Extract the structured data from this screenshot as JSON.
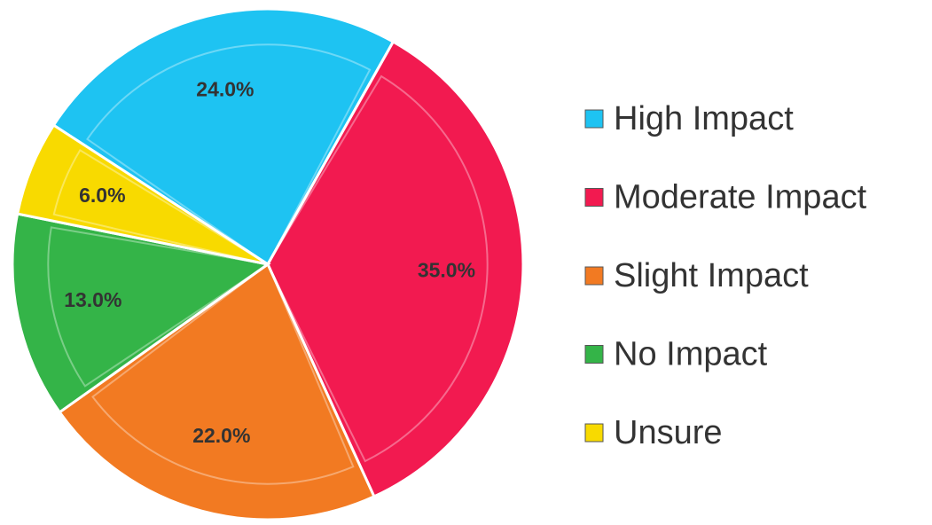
{
  "chart_data": {
    "type": "pie",
    "categories": [
      "High Impact",
      "Moderate Impact",
      "Slight Impact",
      "No Impact",
      "Unsure"
    ],
    "values": [
      24,
      35,
      22,
      13,
      6
    ],
    "value_labels": [
      "24.0%",
      "35.0%",
      "22.0%",
      "13.0%",
      "6.0%"
    ],
    "colors": [
      "#1ec3f2",
      "#f21a50",
      "#f27a22",
      "#34b448",
      "#f8da00"
    ],
    "legend": "right"
  }
}
